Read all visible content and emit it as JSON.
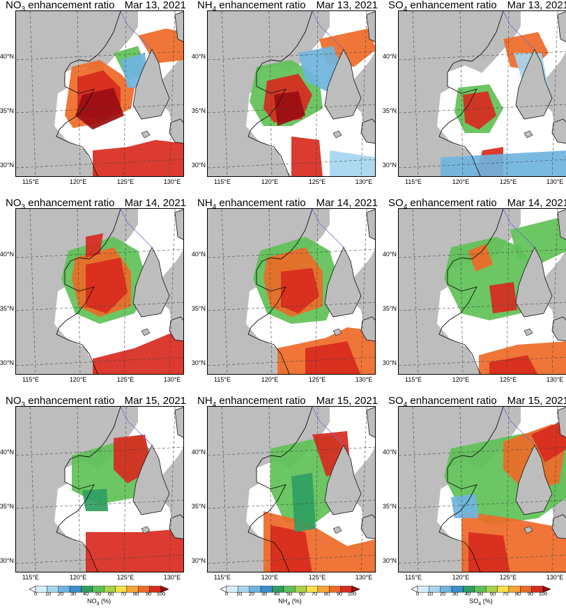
{
  "species": [
    {
      "key": "NO3",
      "base": "NO",
      "sub": "3",
      "title_suffix": " enhancement ratio",
      "unit": "(%)"
    },
    {
      "key": "NH4",
      "base": "NH",
      "sub": "4",
      "title_suffix": " enhancement ratio",
      "unit": "(%)"
    },
    {
      "key": "SO4",
      "base": "SO",
      "sub": "4",
      "title_suffix": " enhancement ratio",
      "unit": "(%)"
    }
  ],
  "dates": [
    "Mar 13, 2021",
    "Mar 14, 2021",
    "Mar 15, 2021"
  ],
  "lat_labels": [
    "40°N",
    "35°N",
    "30°N"
  ],
  "lon_labels": [
    "115°E",
    "120°E",
    "125°E",
    "130°E"
  ],
  "colorbar": {
    "ticks": [
      "0",
      "10",
      "20",
      "30",
      "40",
      "50",
      "60",
      "70",
      "80",
      "90",
      "100"
    ],
    "colors": [
      "#ffffff",
      "#d6eef8",
      "#a6d6ef",
      "#6fb4de",
      "#3b8fcf",
      "#2f9e62",
      "#5ec156",
      "#a8d34a",
      "#f5e04a",
      "#f6a634",
      "#ee6a27",
      "#d82a1e",
      "#9b0d12"
    ]
  },
  "map_colors": {
    "land": "#bdbdbd",
    "ocean_white": "#ffffff",
    "coast": "#111111",
    "border": "#555555",
    "river": "#6b6bd8",
    "grid": "#444444"
  }
}
